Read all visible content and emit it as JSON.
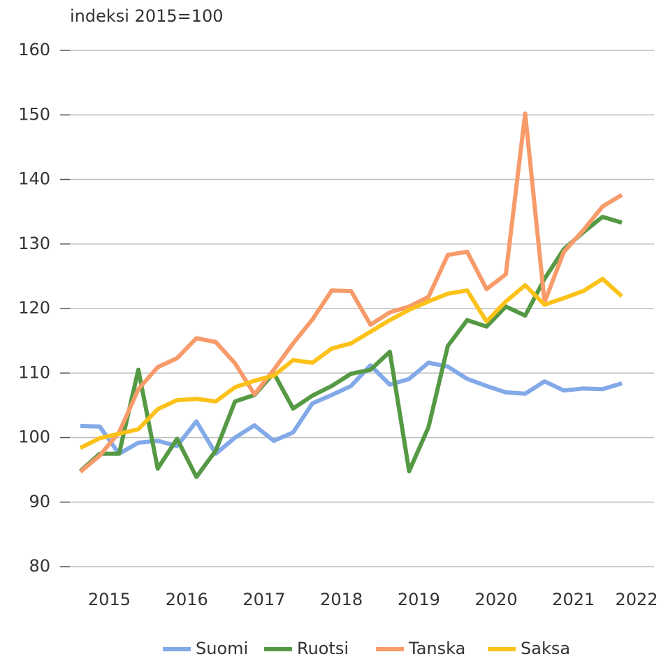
{
  "chart_data": {
    "type": "line",
    "subtitle": "indeksi 2015=100",
    "categories": [
      "2015",
      null,
      null,
      null,
      "2016",
      null,
      null,
      null,
      "2017",
      null,
      null,
      null,
      "2018",
      null,
      null,
      null,
      "2019",
      null,
      null,
      null,
      "2020",
      null,
      null,
      null,
      "2021",
      null,
      null,
      null,
      "2022"
    ],
    "series": [
      {
        "name": "Suomi",
        "color": "#82a9e8",
        "values": [
          101.8,
          101.7,
          97.5,
          99.2,
          99.5,
          98.7,
          102.5,
          97.5,
          100,
          101.9,
          99.5,
          100.8,
          105.3,
          106.6,
          108,
          111.2,
          108.2,
          109.1,
          111.6,
          111,
          109.1,
          108,
          107,
          106.8,
          108.7,
          107.3,
          107.6,
          107.5,
          108.4
        ]
      },
      {
        "name": "Ruotsi",
        "color": "#559944",
        "values": [
          94.8,
          97.5,
          97.5,
          110.5,
          95.2,
          99.8,
          93.9,
          98,
          105.6,
          106.6,
          110,
          104.5,
          106.5,
          108,
          109.9,
          110.5,
          113.3,
          94.8,
          101.6,
          114.2,
          118.2,
          117.2,
          120.3,
          118.9,
          124.6,
          129.2,
          131.8,
          134.2,
          133.3
        ]
      },
      {
        "name": "Tanska",
        "color": "#f79b6a",
        "values": [
          94.7,
          97.2,
          100.8,
          107.5,
          110.9,
          112.3,
          115.4,
          114.8,
          111.5,
          106.7,
          110.5,
          114.6,
          118.3,
          122.8,
          122.7,
          117.5,
          119.4,
          120.3,
          121.8,
          128.3,
          128.8,
          123,
          125.3,
          150.2,
          121,
          128.8,
          132.1,
          135.8,
          137.6
        ]
      },
      {
        "name": "Saksa",
        "color": "#fcc21a",
        "values": [
          98.4,
          99.9,
          100.6,
          101.3,
          104.4,
          105.8,
          106,
          105.6,
          107.8,
          108.8,
          109.6,
          112,
          111.6,
          113.8,
          114.6,
          116.4,
          118.2,
          119.8,
          121.1,
          122.3,
          122.8,
          118,
          121.1,
          123.6,
          120.6,
          121.6,
          122.7,
          124.6,
          121.9
        ]
      }
    ],
    "ylim": [
      80,
      160
    ],
    "yticks": [
      80,
      90,
      100,
      110,
      120,
      130,
      140,
      150,
      160
    ],
    "grid": true,
    "legend": "bottom"
  }
}
